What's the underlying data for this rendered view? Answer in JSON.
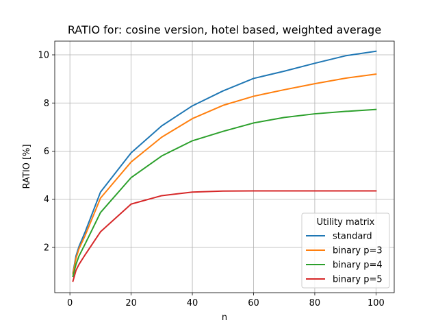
{
  "chart_data": {
    "type": "line",
    "title": "RATIO for: cosine version, hotel based, weighted average",
    "xlabel": "n",
    "ylabel": "RATIO [%]",
    "xlim": [
      -4.95,
      105.95
    ],
    "ylim": [
      0.12,
      10.57
    ],
    "xticks": [
      0,
      20,
      40,
      60,
      80,
      100
    ],
    "yticks": [
      2,
      4,
      6,
      8,
      10
    ],
    "grid": true,
    "legend": {
      "title": "Utility matrix",
      "placement": "lower-right"
    },
    "series": [
      {
        "name": "standard",
        "color": "#1f77b4",
        "x": [
          1,
          2,
          3,
          5,
          10,
          20,
          30,
          40,
          50,
          60,
          70,
          80,
          90,
          100
        ],
        "y": [
          0.95,
          1.65,
          2.05,
          2.65,
          4.3,
          5.93,
          7.05,
          7.88,
          8.5,
          9.02,
          9.32,
          9.65,
          9.96,
          10.15
        ]
      },
      {
        "name": "binary p=3",
        "color": "#ff7f0e",
        "x": [
          1,
          2,
          3,
          5,
          10,
          20,
          30,
          40,
          50,
          60,
          70,
          80,
          90,
          100
        ],
        "y": [
          0.9,
          1.55,
          1.95,
          2.5,
          4.05,
          5.55,
          6.58,
          7.35,
          7.9,
          8.28,
          8.55,
          8.8,
          9.03,
          9.2
        ]
      },
      {
        "name": "binary p=4",
        "color": "#2ca02c",
        "x": [
          1,
          2,
          3,
          5,
          10,
          20,
          30,
          40,
          50,
          60,
          70,
          80,
          90,
          100
        ],
        "y": [
          0.8,
          1.3,
          1.65,
          2.15,
          3.45,
          4.9,
          5.8,
          6.43,
          6.82,
          7.17,
          7.4,
          7.55,
          7.65,
          7.73
        ]
      },
      {
        "name": "binary p=5",
        "color": "#d62728",
        "x": [
          1,
          2,
          3,
          5,
          10,
          20,
          30,
          40,
          50,
          60,
          70,
          80,
          90,
          100
        ],
        "y": [
          0.6,
          1.05,
          1.3,
          1.7,
          2.65,
          3.8,
          4.15,
          4.3,
          4.34,
          4.35,
          4.35,
          4.35,
          4.35,
          4.35
        ]
      }
    ]
  }
}
